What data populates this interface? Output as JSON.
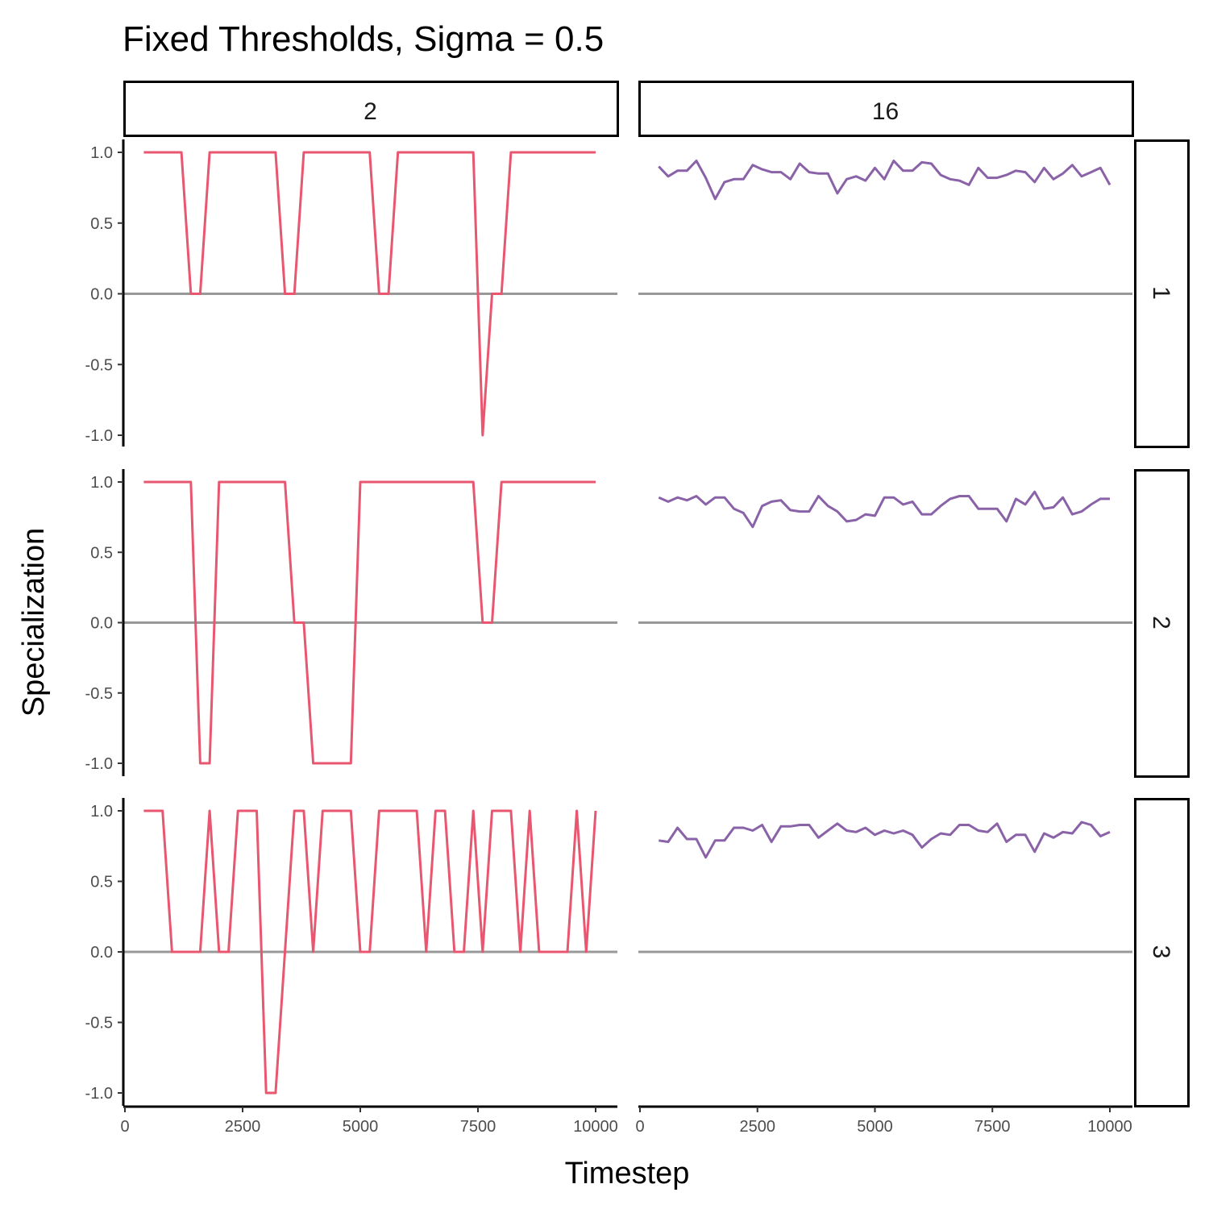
{
  "chart_data": {
    "type": "line",
    "title": "Fixed Thresholds, Sigma = 0.5",
    "xlabel": "Timestep",
    "ylabel": "Specialization",
    "xlim": [
      0,
      10000
    ],
    "ylim": [
      -1.0,
      1.0
    ],
    "x_ticks": [
      "0",
      "2500",
      "5000",
      "7500",
      "10000"
    ],
    "x_tick_values": [
      0,
      2500,
      5000,
      7500,
      10000
    ],
    "y_ticks": [
      "-1.0",
      "-0.5",
      "0.0",
      "0.5",
      "1.0"
    ],
    "y_tick_values": [
      -1.0,
      -0.5,
      0.0,
      0.5,
      1.0
    ],
    "reference_line_y": 0,
    "reference_line_color": "#999999",
    "column_labels": [
      "2",
      "16"
    ],
    "row_labels": [
      "1",
      "2",
      "3"
    ],
    "series_colors": {
      "2": "#e8576f",
      "16": "#8a62a8"
    },
    "panels": [
      {
        "row": "1",
        "col": "2",
        "points": [
          [
            400,
            1
          ],
          [
            1000,
            1
          ],
          [
            1200,
            1
          ],
          [
            1400,
            0
          ],
          [
            1600,
            0
          ],
          [
            1800,
            1
          ],
          [
            2000,
            1
          ],
          [
            3000,
            1
          ],
          [
            3200,
            1
          ],
          [
            3400,
            0
          ],
          [
            3600,
            0
          ],
          [
            3800,
            1
          ],
          [
            4000,
            1
          ],
          [
            5000,
            1
          ],
          [
            5200,
            1
          ],
          [
            5400,
            0
          ],
          [
            5600,
            0
          ],
          [
            5800,
            1
          ],
          [
            6000,
            1
          ],
          [
            7000,
            1
          ],
          [
            7400,
            1
          ],
          [
            7600,
            -1
          ],
          [
            7800,
            0
          ],
          [
            8000,
            0
          ],
          [
            8200,
            1
          ],
          [
            9000,
            1
          ],
          [
            10000,
            1
          ]
        ]
      },
      {
        "row": "1",
        "col": "16",
        "points": [
          [
            400,
            0.9
          ],
          [
            600,
            0.83
          ],
          [
            800,
            0.87
          ],
          [
            1000,
            0.87
          ],
          [
            1200,
            0.94
          ],
          [
            1400,
            0.82
          ],
          [
            1600,
            0.67
          ],
          [
            1800,
            0.79
          ],
          [
            2000,
            0.81
          ],
          [
            2200,
            0.81
          ],
          [
            2400,
            0.91
          ],
          [
            2600,
            0.88
          ],
          [
            2800,
            0.86
          ],
          [
            3000,
            0.86
          ],
          [
            3200,
            0.81
          ],
          [
            3400,
            0.92
          ],
          [
            3600,
            0.86
          ],
          [
            3800,
            0.85
          ],
          [
            4000,
            0.85
          ],
          [
            4200,
            0.71
          ],
          [
            4400,
            0.81
          ],
          [
            4600,
            0.83
          ],
          [
            4800,
            0.8
          ],
          [
            5000,
            0.89
          ],
          [
            5200,
            0.81
          ],
          [
            5400,
            0.94
          ],
          [
            5600,
            0.87
          ],
          [
            5800,
            0.87
          ],
          [
            6000,
            0.93
          ],
          [
            6200,
            0.92
          ],
          [
            6400,
            0.84
          ],
          [
            6600,
            0.81
          ],
          [
            6800,
            0.8
          ],
          [
            7000,
            0.77
          ],
          [
            7200,
            0.89
          ],
          [
            7400,
            0.82
          ],
          [
            7600,
            0.82
          ],
          [
            7800,
            0.84
          ],
          [
            8000,
            0.87
          ],
          [
            8200,
            0.86
          ],
          [
            8400,
            0.79
          ],
          [
            8600,
            0.89
          ],
          [
            8800,
            0.81
          ],
          [
            9000,
            0.85
          ],
          [
            9200,
            0.91
          ],
          [
            9400,
            0.83
          ],
          [
            9600,
            0.86
          ],
          [
            9800,
            0.89
          ],
          [
            10000,
            0.77
          ]
        ]
      },
      {
        "row": "2",
        "col": "2",
        "points": [
          [
            400,
            1
          ],
          [
            1000,
            1
          ],
          [
            1400,
            1
          ],
          [
            1600,
            -1
          ],
          [
            1800,
            -1
          ],
          [
            2000,
            1
          ],
          [
            2400,
            1
          ],
          [
            3400,
            1
          ],
          [
            3600,
            0
          ],
          [
            3800,
            0
          ],
          [
            4000,
            -1
          ],
          [
            4600,
            -1
          ],
          [
            4800,
            -1
          ],
          [
            5000,
            1
          ],
          [
            6000,
            1
          ],
          [
            7400,
            1
          ],
          [
            7600,
            0
          ],
          [
            7800,
            0
          ],
          [
            8000,
            1
          ],
          [
            9000,
            1
          ],
          [
            10000,
            1
          ]
        ]
      },
      {
        "row": "2",
        "col": "16",
        "points": [
          [
            400,
            0.89
          ],
          [
            600,
            0.86
          ],
          [
            800,
            0.89
          ],
          [
            1000,
            0.87
          ],
          [
            1200,
            0.9
          ],
          [
            1400,
            0.84
          ],
          [
            1600,
            0.89
          ],
          [
            1800,
            0.89
          ],
          [
            2000,
            0.81
          ],
          [
            2200,
            0.78
          ],
          [
            2400,
            0.68
          ],
          [
            2600,
            0.83
          ],
          [
            2800,
            0.86
          ],
          [
            3000,
            0.87
          ],
          [
            3200,
            0.8
          ],
          [
            3400,
            0.79
          ],
          [
            3600,
            0.79
          ],
          [
            3800,
            0.9
          ],
          [
            4000,
            0.83
          ],
          [
            4200,
            0.79
          ],
          [
            4400,
            0.72
          ],
          [
            4600,
            0.73
          ],
          [
            4800,
            0.77
          ],
          [
            5000,
            0.76
          ],
          [
            5200,
            0.89
          ],
          [
            5400,
            0.89
          ],
          [
            5600,
            0.84
          ],
          [
            5800,
            0.86
          ],
          [
            6000,
            0.77
          ],
          [
            6200,
            0.77
          ],
          [
            6400,
            0.83
          ],
          [
            6600,
            0.88
          ],
          [
            6800,
            0.9
          ],
          [
            7000,
            0.9
          ],
          [
            7200,
            0.81
          ],
          [
            7400,
            0.81
          ],
          [
            7600,
            0.81
          ],
          [
            7800,
            0.72
          ],
          [
            8000,
            0.88
          ],
          [
            8200,
            0.84
          ],
          [
            8400,
            0.93
          ],
          [
            8600,
            0.81
          ],
          [
            8800,
            0.82
          ],
          [
            9000,
            0.89
          ],
          [
            9200,
            0.77
          ],
          [
            9400,
            0.79
          ],
          [
            9600,
            0.84
          ],
          [
            9800,
            0.88
          ],
          [
            10000,
            0.88
          ]
        ]
      },
      {
        "row": "3",
        "col": "2",
        "points": [
          [
            400,
            1
          ],
          [
            800,
            1
          ],
          [
            1000,
            0
          ],
          [
            1600,
            0
          ],
          [
            1800,
            1
          ],
          [
            2000,
            0
          ],
          [
            2200,
            0
          ],
          [
            2400,
            1
          ],
          [
            2800,
            1
          ],
          [
            3000,
            -1
          ],
          [
            3200,
            -1
          ],
          [
            3600,
            1
          ],
          [
            3800,
            1
          ],
          [
            4000,
            0
          ],
          [
            4200,
            1
          ],
          [
            4800,
            1
          ],
          [
            5000,
            0
          ],
          [
            5200,
            0
          ],
          [
            5400,
            1
          ],
          [
            6200,
            1
          ],
          [
            6400,
            0
          ],
          [
            6600,
            1
          ],
          [
            6800,
            1
          ],
          [
            7000,
            0
          ],
          [
            7200,
            0
          ],
          [
            7400,
            1
          ],
          [
            7600,
            0
          ],
          [
            7800,
            1
          ],
          [
            8200,
            1
          ],
          [
            8400,
            0
          ],
          [
            8600,
            1
          ],
          [
            8800,
            0
          ],
          [
            9400,
            0
          ],
          [
            9600,
            1
          ],
          [
            9800,
            0
          ],
          [
            10000,
            1
          ]
        ]
      },
      {
        "row": "3",
        "col": "16",
        "points": [
          [
            400,
            0.79
          ],
          [
            600,
            0.78
          ],
          [
            800,
            0.88
          ],
          [
            1000,
            0.8
          ],
          [
            1200,
            0.8
          ],
          [
            1400,
            0.67
          ],
          [
            1600,
            0.79
          ],
          [
            1800,
            0.79
          ],
          [
            2000,
            0.88
          ],
          [
            2200,
            0.88
          ],
          [
            2400,
            0.86
          ],
          [
            2600,
            0.9
          ],
          [
            2800,
            0.78
          ],
          [
            3000,
            0.89
          ],
          [
            3200,
            0.89
          ],
          [
            3400,
            0.9
          ],
          [
            3600,
            0.9
          ],
          [
            3800,
            0.81
          ],
          [
            4000,
            0.86
          ],
          [
            4200,
            0.91
          ],
          [
            4400,
            0.86
          ],
          [
            4600,
            0.85
          ],
          [
            4800,
            0.88
          ],
          [
            5000,
            0.83
          ],
          [
            5200,
            0.86
          ],
          [
            5400,
            0.84
          ],
          [
            5600,
            0.86
          ],
          [
            5800,
            0.83
          ],
          [
            6000,
            0.74
          ],
          [
            6200,
            0.8
          ],
          [
            6400,
            0.84
          ],
          [
            6600,
            0.83
          ],
          [
            6800,
            0.9
          ],
          [
            7000,
            0.9
          ],
          [
            7200,
            0.86
          ],
          [
            7400,
            0.85
          ],
          [
            7600,
            0.91
          ],
          [
            7800,
            0.78
          ],
          [
            8000,
            0.83
          ],
          [
            8200,
            0.83
          ],
          [
            8400,
            0.71
          ],
          [
            8600,
            0.84
          ],
          [
            8800,
            0.81
          ],
          [
            9000,
            0.85
          ],
          [
            9200,
            0.84
          ],
          [
            9400,
            0.92
          ],
          [
            9600,
            0.9
          ],
          [
            9800,
            0.82
          ],
          [
            10000,
            0.85
          ]
        ]
      }
    ]
  }
}
